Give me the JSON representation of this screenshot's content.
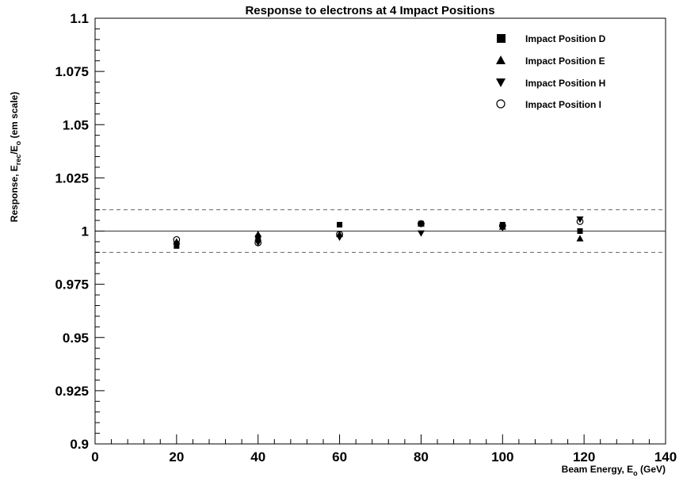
{
  "chart_data": {
    "type": "scatter",
    "title": "Response to electrons at 4 Impact Positions",
    "xlabel": {
      "main": "Beam Energy, E",
      "sub": "o",
      "tail": " (GeV)"
    },
    "ylabel": {
      "p1": "Response, E",
      "sub1": "rec",
      "p2": "/E",
      "sub2": "o",
      "p3": " (em scale)"
    },
    "xlim": [
      0,
      140
    ],
    "ylim": [
      0.9,
      1.1
    ],
    "x_ticks": [
      "0",
      "20",
      "40",
      "60",
      "80",
      "100",
      "120",
      "140"
    ],
    "y_ticks": [
      "0.9",
      "0.925",
      "0.95",
      "0.975",
      "1",
      "1.025",
      "1.05",
      "1.075",
      "1.1"
    ],
    "reference_lines": [
      {
        "y": 1.0,
        "style": "solid"
      },
      {
        "y": 1.01,
        "style": "dashed"
      },
      {
        "y": 0.99,
        "style": "dashed"
      }
    ],
    "legend_position": "top-right",
    "series": [
      {
        "name": "Impact Position D",
        "marker": "square",
        "x": [
          20,
          40,
          60,
          80,
          100,
          119
        ],
        "y": [
          0.993,
          0.997,
          1.003,
          1.0035,
          1.003,
          1.0
        ]
      },
      {
        "name": "Impact Position E",
        "marker": "triangle-up",
        "x": [
          20,
          40,
          60,
          80,
          100,
          119
        ],
        "y": [
          0.995,
          0.9985,
          0.9985,
          1.0035,
          1.002,
          0.9965
        ]
      },
      {
        "name": "Impact Position H",
        "marker": "triangle-down",
        "x": [
          20,
          40,
          60,
          80,
          100,
          119
        ],
        "y": [
          0.9935,
          0.9945,
          0.997,
          0.999,
          1.0015,
          1.0055
        ]
      },
      {
        "name": "Impact Position I",
        "marker": "circle-open",
        "x": [
          20,
          40,
          60,
          80,
          100,
          119
        ],
        "y": [
          0.996,
          0.9945,
          0.9985,
          1.0035,
          1.0025,
          1.0045
        ]
      }
    ]
  }
}
